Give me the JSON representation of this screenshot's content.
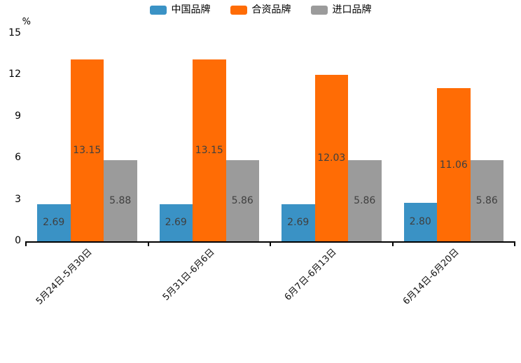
{
  "chart_data": {
    "type": "bar",
    "unit_label": "%",
    "categories": [
      "5月24日-5月30日",
      "5月31日-6月6日",
      "6月7日-6月13日",
      "6月14日-6月20日"
    ],
    "series": [
      {
        "name": "中国品牌",
        "color": "#3A92C5",
        "values": [
          2.69,
          2.69,
          2.69,
          2.8
        ],
        "value_labels": [
          "2.69",
          "2.69",
          "2.69",
          "2.80"
        ]
      },
      {
        "name": "合资品牌",
        "color": "#FF6C05",
        "values": [
          13.15,
          13.15,
          12.03,
          11.06
        ],
        "value_labels": [
          "13.15",
          "13.15",
          "12.03",
          "11.06"
        ]
      },
      {
        "name": "进口品牌",
        "color": "#9B9B9B",
        "values": [
          5.88,
          5.86,
          5.86,
          5.86
        ],
        "value_labels": [
          "5.88",
          "5.86",
          "5.86",
          "5.86"
        ]
      }
    ],
    "y_ticks": [
      0,
      3,
      6,
      9,
      12,
      15
    ],
    "ylim": [
      0,
      15
    ],
    "grid": false,
    "legend_position": "top-center",
    "bar_label_color": "#3F3F3F",
    "axis_color": "#000000",
    "background": "#FFFFFF"
  }
}
